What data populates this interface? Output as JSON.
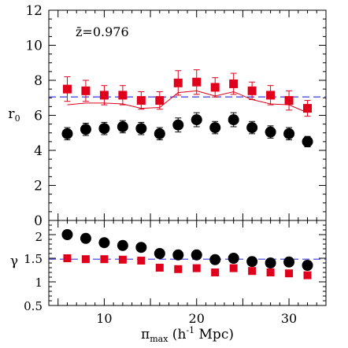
{
  "chart_data": [
    {
      "type": "scatter",
      "annotation": "z̄=0.976",
      "ylabel": "r0",
      "xlim": [
        4,
        34
      ],
      "ylim": [
        0,
        12
      ],
      "yticks": [
        0,
        2,
        4,
        6,
        8,
        10,
        12
      ],
      "x": [
        6,
        8,
        10,
        12,
        14,
        16,
        18,
        20,
        22,
        24,
        26,
        28,
        30,
        32
      ],
      "reference_line": {
        "y": 7.05,
        "style": "dashed",
        "color": "#3b3bd6"
      },
      "series": [
        {
          "marker": "square",
          "color": "#e0001b",
          "values": [
            7.5,
            7.4,
            7.15,
            7.15,
            6.85,
            6.85,
            7.85,
            7.9,
            7.6,
            7.8,
            7.4,
            7.15,
            6.85,
            6.4
          ],
          "errors": [
            0.7,
            0.6,
            0.55,
            0.55,
            0.5,
            0.5,
            0.7,
            0.7,
            0.55,
            0.6,
            0.5,
            0.55,
            0.55,
            0.45
          ]
        },
        {
          "marker": "line",
          "color": "#e0001b",
          "values": [
            6.6,
            6.7,
            6.7,
            6.65,
            6.4,
            6.45,
            7.3,
            7.4,
            7.1,
            7.35,
            6.9,
            6.65,
            6.6,
            6.15
          ]
        },
        {
          "marker": "circle",
          "color": "#000000",
          "values": [
            4.95,
            5.2,
            5.25,
            5.35,
            5.25,
            4.95,
            5.45,
            5.75,
            5.3,
            5.75,
            5.3,
            5.05,
            4.95,
            4.5
          ],
          "errors": [
            0.35,
            0.35,
            0.35,
            0.35,
            0.35,
            0.35,
            0.4,
            0.4,
            0.35,
            0.4,
            0.35,
            0.35,
            0.35,
            0.3
          ]
        }
      ]
    },
    {
      "type": "scatter",
      "xlabel_main": "π",
      "xlabel_sub": "max",
      "xlabel_rest": " (h",
      "xlabel_sup": "-1",
      "xlabel_end": " Mpc)",
      "ylabel": "γ",
      "xlim": [
        4,
        34
      ],
      "ylim": [
        0.5,
        2.3
      ],
      "yticks": [
        0.5,
        1,
        1.5,
        2
      ],
      "yticklabels": [
        "0.5",
        "1",
        "1.5",
        "2"
      ],
      "xticks": [
        10,
        20,
        30
      ],
      "x": [
        6,
        8,
        10,
        12,
        14,
        16,
        18,
        20,
        22,
        24,
        26,
        28,
        30,
        32
      ],
      "reference_line": {
        "y": 1.48,
        "style": "dashed",
        "color": "#3b3bd6"
      },
      "series": [
        {
          "marker": "circle",
          "color": "#000000",
          "values": [
            2.0,
            1.92,
            1.83,
            1.77,
            1.73,
            1.6,
            1.57,
            1.57,
            1.47,
            1.5,
            1.43,
            1.4,
            1.42,
            1.35
          ]
        },
        {
          "marker": "square",
          "color": "#e0001b",
          "values": [
            1.5,
            1.48,
            1.48,
            1.47,
            1.45,
            1.3,
            1.27,
            1.29,
            1.2,
            1.29,
            1.23,
            1.2,
            1.18,
            1.14
          ]
        }
      ]
    }
  ]
}
